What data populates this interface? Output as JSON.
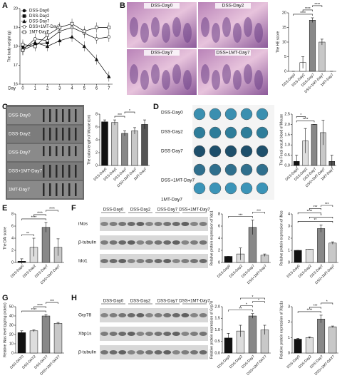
{
  "panel_labels": [
    "A",
    "B",
    "C",
    "D",
    "E",
    "F",
    "G",
    "H"
  ],
  "images": [
    {
      "labels": [
        "DSS-Day0",
        "DSS-Day2",
        "DSS-Day7",
        "DSS+1MT-Day7"
      ]
    },
    {
      "labels": [
        "DSS-Day0",
        "DSS-Day2",
        "DSS-Day7",
        "DSS+1MT-Day7",
        "1MT-Day7"
      ]
    },
    {
      "labels": [
        "DSS-Day0",
        "DSS-Day2",
        "DSS-Day7",
        "DSS+1MT-Day7",
        "1MT-Day7"
      ]
    }
  ],
  "blots": [
    {
      "columns": [
        "DSS-Day0",
        "DSS-Day2",
        "DSS-Day7",
        "DSS+1MT-Day7"
      ],
      "rows": [
        "iNos",
        "β-tubulin",
        "Ido1"
      ]
    },
    {
      "columns": [
        "DSS-Day0",
        "DSS-Day2",
        "DSS-Day7",
        "DSS+1MT-Day7"
      ],
      "rows": [
        "Grp78",
        "Xbp1s",
        "β-tubulin"
      ]
    }
  ],
  "chart_data": [
    {
      "type": "line",
      "ylabel": "The body weight (g)",
      "xlabel": "Day",
      "x": [
        0,
        1,
        2,
        3,
        4,
        5,
        6,
        7
      ],
      "xlim": [
        0,
        7.3
      ],
      "xticks": [
        0,
        1,
        2,
        3,
        4,
        5,
        6,
        7
      ],
      "ylim": [
        16,
        20
      ],
      "yticks": [
        16,
        17,
        18,
        19,
        20
      ],
      "legend": "upper left",
      "series": [
        {
          "name": "DSS-Day0",
          "color": "#000000",
          "marker": "circle",
          "values": [
            18.0,
            null,
            null,
            null,
            null,
            null,
            null,
            null
          ]
        },
        {
          "name": "DSS-Day2",
          "color": "#000000",
          "marker": "square",
          "values": [
            17.8,
            18.1,
            18.2,
            null,
            null,
            null,
            null,
            null
          ]
        },
        {
          "name": "DSS-Day7",
          "color": "#000000",
          "marker": "triangle",
          "values": [
            17.9,
            18.2,
            18.0,
            18.3,
            18.5,
            18.0,
            17.3,
            16.4
          ]
        },
        {
          "name": "DSS+1MT-Day7",
          "color": "#000000",
          "marker": "circle-open",
          "values": [
            17.8,
            18.4,
            18.3,
            18.8,
            19.0,
            18.7,
            18.4,
            18.5
          ]
        },
        {
          "name": "1MT-Day7",
          "color": "#000000",
          "marker": "square-open",
          "values": [
            18.1,
            18.0,
            18.6,
            19.0,
            19.2,
            18.8,
            19.0,
            19.0
          ]
        }
      ]
    },
    {
      "type": "bar",
      "ylabel": "The HE score",
      "categories": [
        "DSS-Day0",
        "DSS-Day2",
        "DSS-Day7",
        "DSS+1MT-Day7",
        "1MT-Day7"
      ],
      "values": [
        0,
        3,
        17.5,
        10,
        0
      ],
      "errors": [
        0,
        2,
        0.8,
        1,
        0
      ],
      "colors": [
        "#111111",
        "#ffffff",
        "#888888",
        "#c8c8c8",
        "#555555"
      ],
      "ylim": [
        0,
        20
      ],
      "yticks": [
        0,
        5,
        10,
        15,
        20
      ],
      "annotations": [
        "****",
        "****",
        "****"
      ]
    },
    {
      "type": "bar",
      "ylabel": "The colon length of Mouse (cm)",
      "categories": [
        "DSS-Day0",
        "DSS-Day2",
        "DSS-Day7",
        "DSS+1MT-Day7",
        "1MT-Day7"
      ],
      "values": [
        6.8,
        6.7,
        5.0,
        5.4,
        6.4
      ],
      "errors": [
        0.3,
        0.4,
        0.4,
        0.5,
        0.7
      ],
      "colors": [
        "#111111",
        "#cccccc",
        "#888888",
        "#c8c8c8",
        "#555555"
      ],
      "ylim": [
        0,
        8
      ],
      "yticks": [
        0,
        2,
        4,
        6,
        8
      ],
      "annotations": [
        "***",
        "*"
      ]
    },
    {
      "type": "bar",
      "ylabel": "The Fecal occult blood of Mouse",
      "categories": [
        "DSS-Day0",
        "DSS-Day2",
        "DSS-Day7",
        "DSS+1MT-Day7",
        "1MT-Day7"
      ],
      "values": [
        0.2,
        1.2,
        2.0,
        1.6,
        0.2
      ],
      "errors": [
        0.3,
        0.6,
        0,
        0.6,
        0.3
      ],
      "colors": [
        "#111111",
        "#dddddd",
        "#888888",
        "#c8c8c8",
        "#555555"
      ],
      "ylim": [
        0,
        2.5
      ],
      "yticks": [
        {
          "value": 0,
          "label": "0.0"
        },
        0.5,
        {
          "value": 1,
          "label": "1.0"
        },
        1.5,
        {
          "value": 2,
          "label": "2.0"
        },
        2.5
      ],
      "annotations": [
        "****",
        "*"
      ]
    },
    {
      "type": "bar",
      "ylabel": "The DAI score",
      "categories": [
        "DSS-Day0",
        "DSS-Day2",
        "DSS-Day7",
        "DSS+1MT-Day7"
      ],
      "values": [
        0.2,
        2.5,
        5.8,
        2.5
      ],
      "errors": [
        0.4,
        1.5,
        0.8,
        1.4
      ],
      "colors": [
        "#111111",
        "#dddddd",
        "#888888",
        "#c8c8c8"
      ],
      "ylim": [
        0,
        8
      ],
      "yticks": [
        0,
        2,
        4,
        6,
        8
      ],
      "annotations": [
        "**",
        "****",
        "****",
        "****"
      ]
    },
    {
      "type": "bar",
      "ylabel": "Relative protein expression of Ido1",
      "categories": [
        "DSS-Day0",
        "DSS-Day2",
        "DSS-Day7",
        "DSS+1MT-Day7"
      ],
      "values": [
        1,
        1.4,
        5.8,
        1.2
      ],
      "errors": [
        0,
        1,
        1.2,
        0.2
      ],
      "colors": [
        "#111111",
        "#dddddd",
        "#888888",
        "#c8c8c8"
      ],
      "ylim": [
        0,
        8
      ],
      "yticks": [
        0,
        2,
        4,
        6,
        8
      ],
      "annotations": [
        "***",
        "***"
      ]
    },
    {
      "type": "bar",
      "ylabel": "Relative protein expression of iNos",
      "categories": [
        "DSS-Day0",
        "DSS-Day2",
        "DSS-Day7",
        "DSS+1MT-Day7"
      ],
      "values": [
        1,
        1.1,
        2.8,
        1.6
      ],
      "errors": [
        0,
        0,
        0.3,
        0.1
      ],
      "colors": [
        "#111111",
        "#dddddd",
        "#888888",
        "#c8c8c8"
      ],
      "ylim": [
        0,
        4
      ],
      "yticks": [
        0,
        1,
        2,
        3,
        4
      ],
      "annotations": [
        "**",
        "*",
        "****",
        "***",
        "***"
      ]
    },
    {
      "type": "bar",
      "ylabel": "Relative iNos level (pg/mg protein)",
      "categories": [
        "DSS-DAY0",
        "DSS-DAY2",
        "DSS-DAY7",
        "DSS+1MT-DAY7"
      ],
      "values": [
        22,
        24,
        40,
        32
      ],
      "errors": [
        2,
        1,
        1.5,
        1
      ],
      "colors": [
        "#111111",
        "#dddddd",
        "#888888",
        "#c8c8c8"
      ],
      "ylim": [
        0,
        50
      ],
      "yticks": [
        0,
        10,
        20,
        30,
        40,
        50
      ],
      "annotations": [
        "****",
        "****",
        "***"
      ]
    },
    {
      "type": "bar",
      "ylabel": "Relative protein expression of Grp78",
      "categories": [
        "DSS-Day0",
        "DSS-Day2",
        "DSS-Day7",
        "DSS+1MT-DAY7"
      ],
      "values": [
        0.65,
        0.95,
        1.6,
        1.0
      ],
      "errors": [
        0.2,
        0.25,
        0.1,
        0.2
      ],
      "colors": [
        "#111111",
        "#dddddd",
        "#888888",
        "#c8c8c8"
      ],
      "ylim": [
        0,
        2
      ],
      "yticks": [
        {
          "value": 0,
          "label": "0.0"
        },
        0.5,
        {
          "value": 1,
          "label": "1.0"
        },
        1.5,
        {
          "value": 2,
          "label": "2.0"
        }
      ],
      "annotations": [
        "**",
        "*",
        "*",
        "*"
      ]
    },
    {
      "type": "bar",
      "ylabel": "Relative protein expression of Xbp1s",
      "categories": [
        "DSS-Day0",
        "DSS-Day2",
        "DSS-Day7",
        "DSS+1MT-DAY7"
      ],
      "values": [
        0.9,
        1.0,
        2.2,
        1.7
      ],
      "errors": [
        0.05,
        0.05,
        0.25,
        0.05
      ],
      "colors": [
        "#111111",
        "#dddddd",
        "#888888",
        "#c8c8c8"
      ],
      "ylim": [
        0,
        3
      ],
      "yticks": [
        0,
        1,
        2,
        3
      ],
      "annotations": [
        "****",
        "***",
        "*"
      ]
    }
  ]
}
